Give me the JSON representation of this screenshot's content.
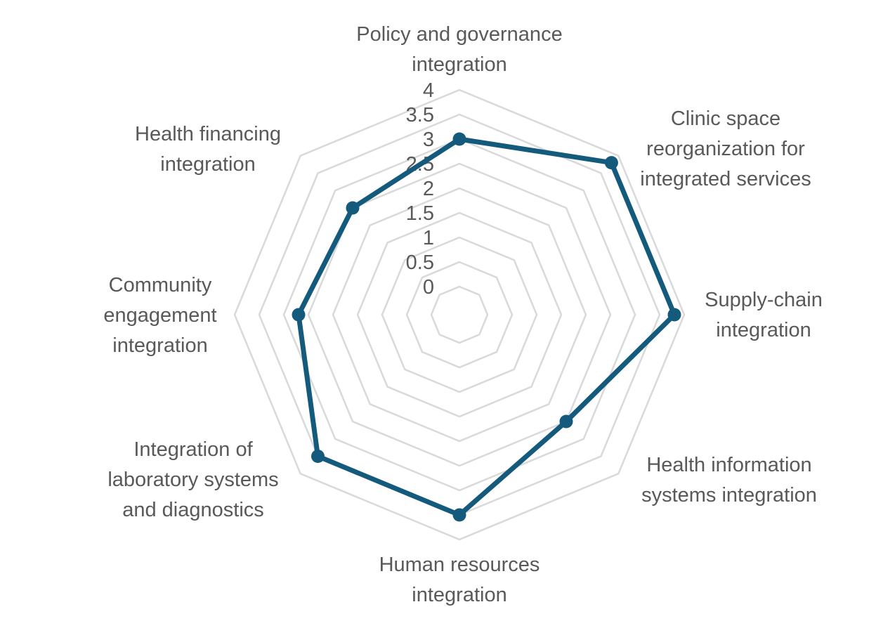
{
  "chart_data": {
    "type": "radar",
    "title": "",
    "categories": [
      [
        "Policy and governance",
        "integration"
      ],
      [
        "Clinic space",
        "reorganization for",
        "integrated services"
      ],
      [
        "Supply-chain",
        "integration"
      ],
      [
        "Health information",
        "systems integration"
      ],
      [
        "Human resources",
        "integration"
      ],
      [
        "Integration of",
        "laboratory systems",
        "and diagnostics"
      ],
      [
        "Community",
        "engagement",
        "integration"
      ],
      [
        "Health financing",
        "integration"
      ]
    ],
    "series": [
      {
        "values": [
          3.0,
          3.8,
          3.8,
          2.5,
          3.5,
          3.5,
          2.7,
          2.5
        ]
      }
    ],
    "rlim": [
      0,
      4
    ],
    "ticks": [
      "0",
      "0.5",
      "1",
      "1.5",
      "2",
      "2.5",
      "3",
      "3.5",
      "4"
    ],
    "tick_values": [
      0,
      0.5,
      1,
      1.5,
      2,
      2.5,
      3,
      3.5,
      4
    ],
    "grid": true,
    "legend": "none",
    "colors": {
      "series": "#145a7c",
      "grid": "#d9d9d9",
      "text": "#595959"
    }
  }
}
